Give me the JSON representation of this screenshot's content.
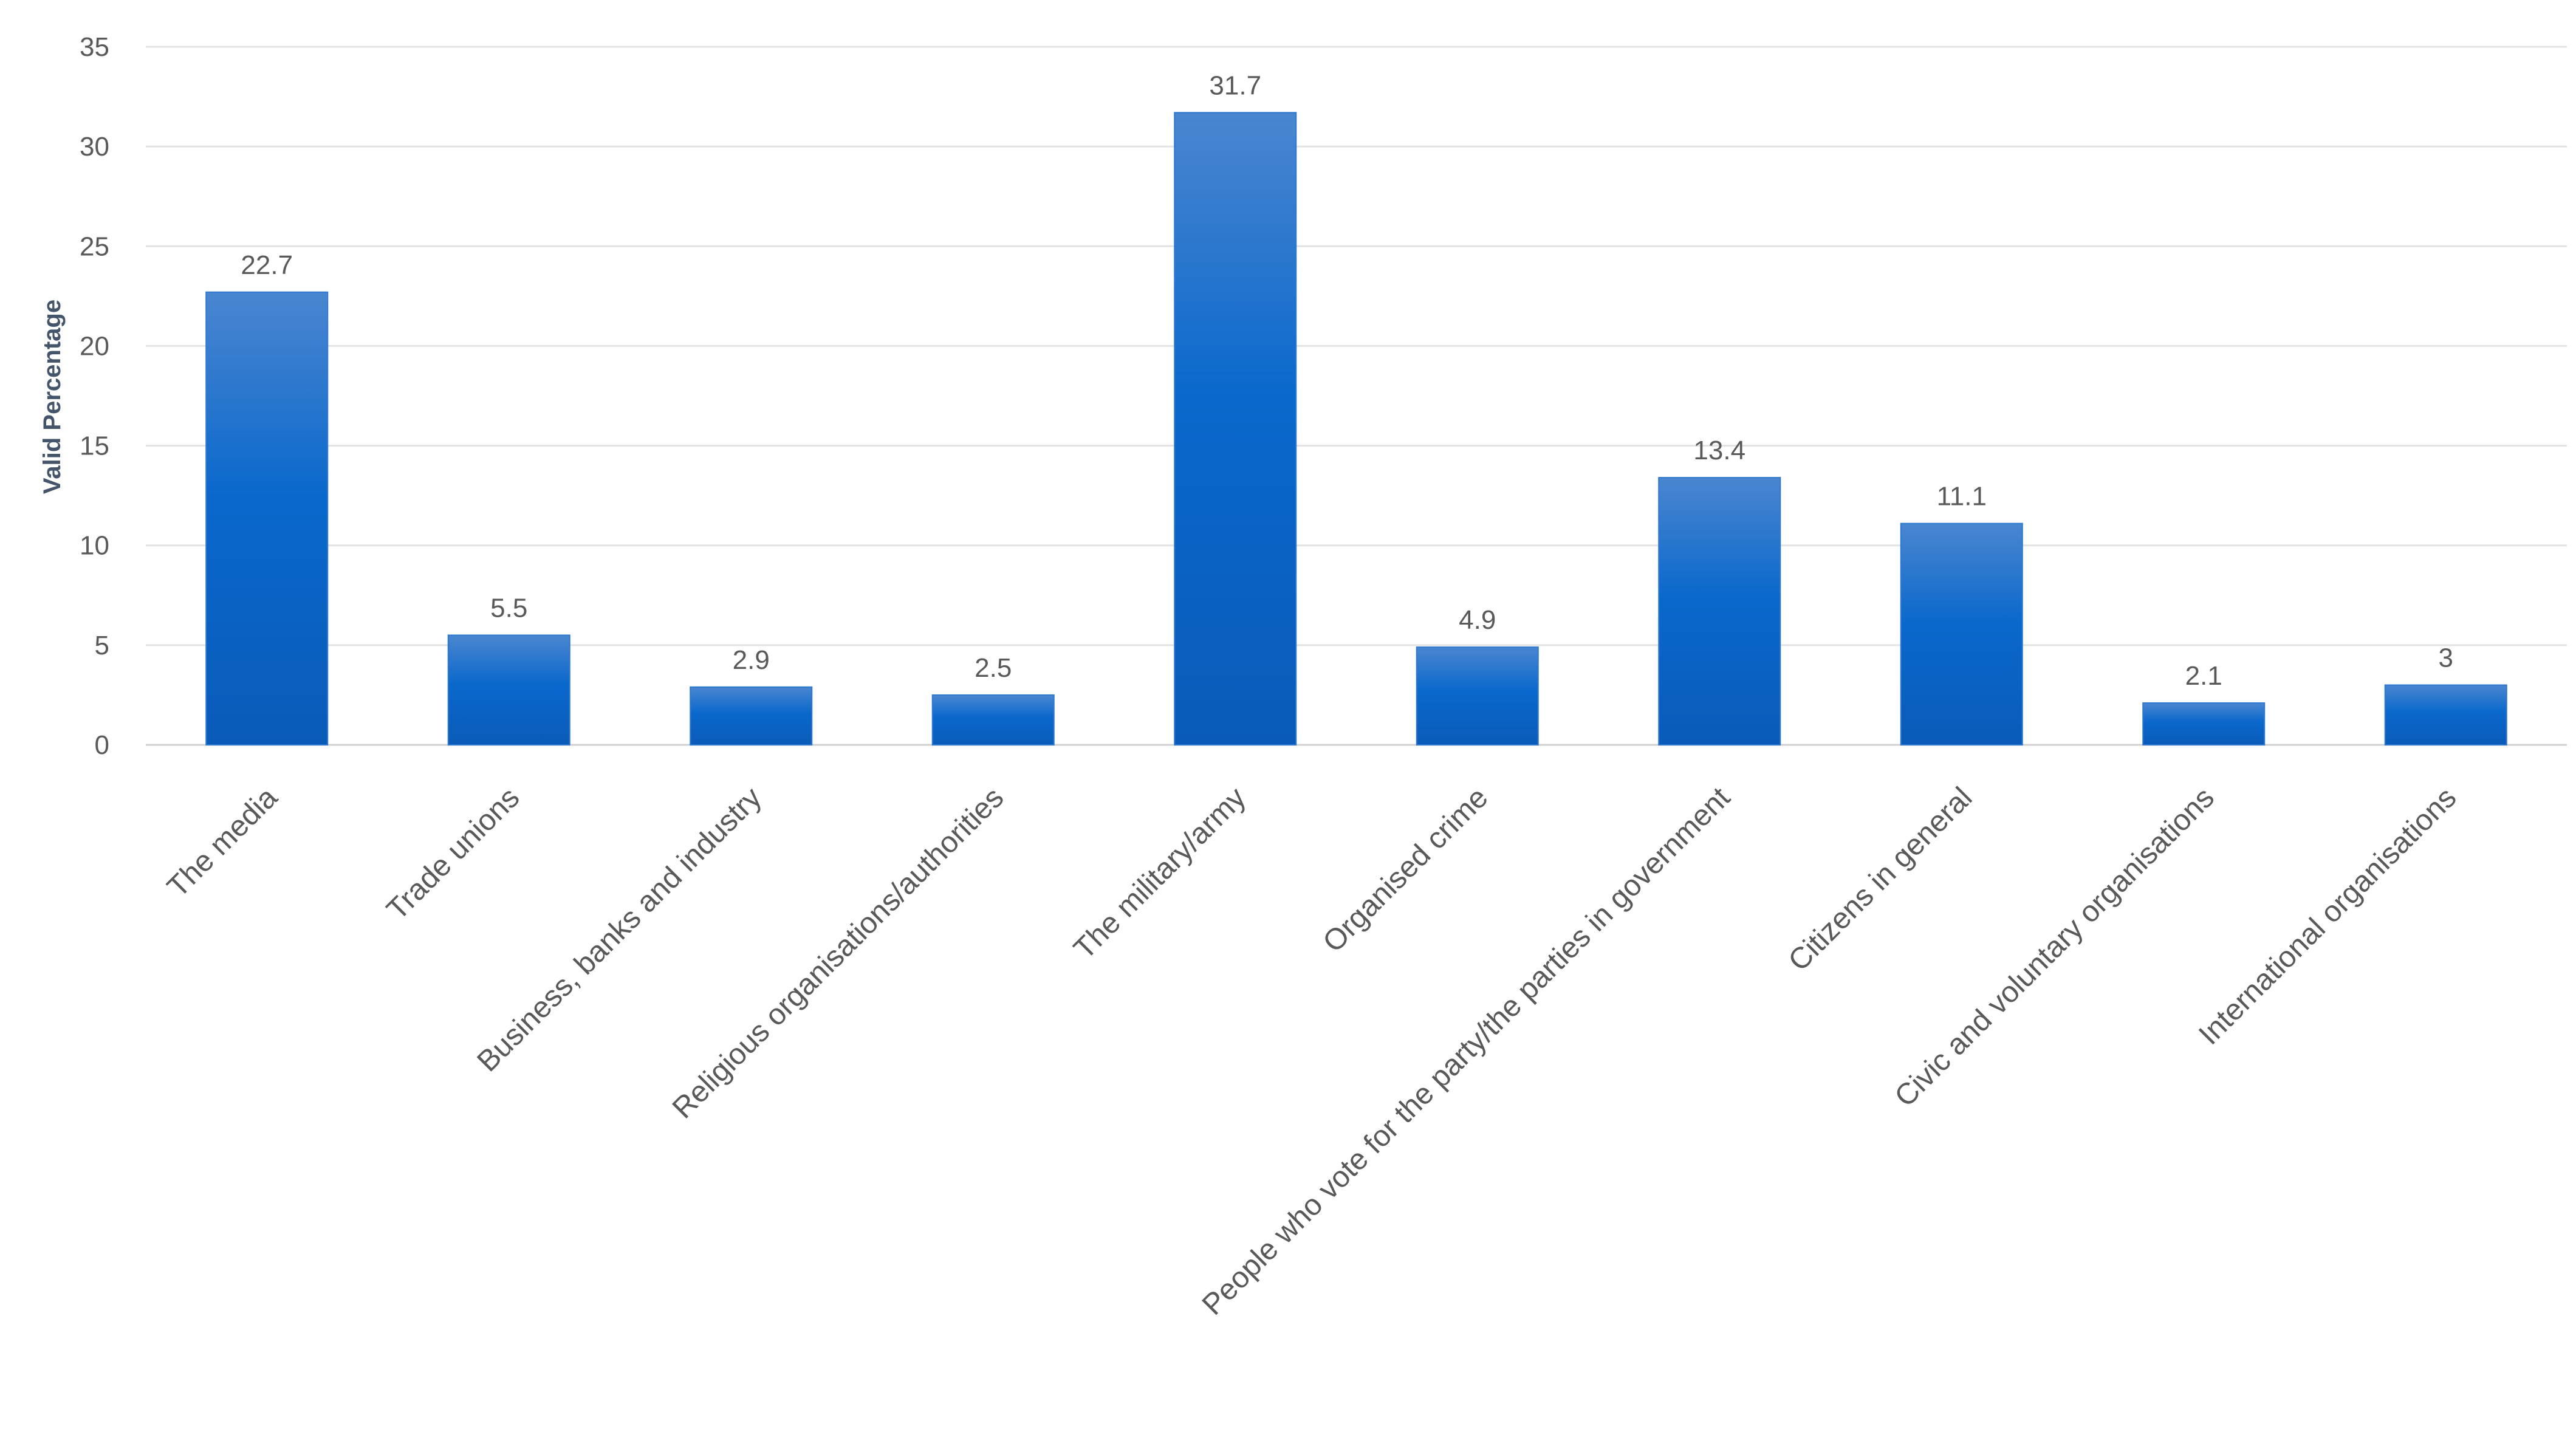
{
  "chart_data": {
    "type": "bar",
    "title": "",
    "xlabel": "",
    "ylabel": "Valid Percentage",
    "ylim": [
      0,
      35
    ],
    "yticks": [
      0,
      5,
      10,
      15,
      20,
      25,
      30,
      35
    ],
    "grid": true,
    "legend": "none",
    "bar_color": "#0a64c8",
    "categories": [
      "The media",
      "Trade unions",
      "Business, banks and industry",
      "Religious organisations/authorities",
      "The military/army",
      "Organised crime",
      "People who vote for the party/the parties in government",
      "Citizens in general",
      "Civic and voluntary organisations",
      "International organisations"
    ],
    "values": [
      22.7,
      5.5,
      2.9,
      2.5,
      31.7,
      4.9,
      13.4,
      11.1,
      2.1,
      3
    ],
    "data_labels": [
      "22.7",
      "5.5",
      "2.9",
      "2.5",
      "31.7",
      "4.9",
      "13.4",
      "11.1",
      "2.1",
      "3"
    ]
  }
}
